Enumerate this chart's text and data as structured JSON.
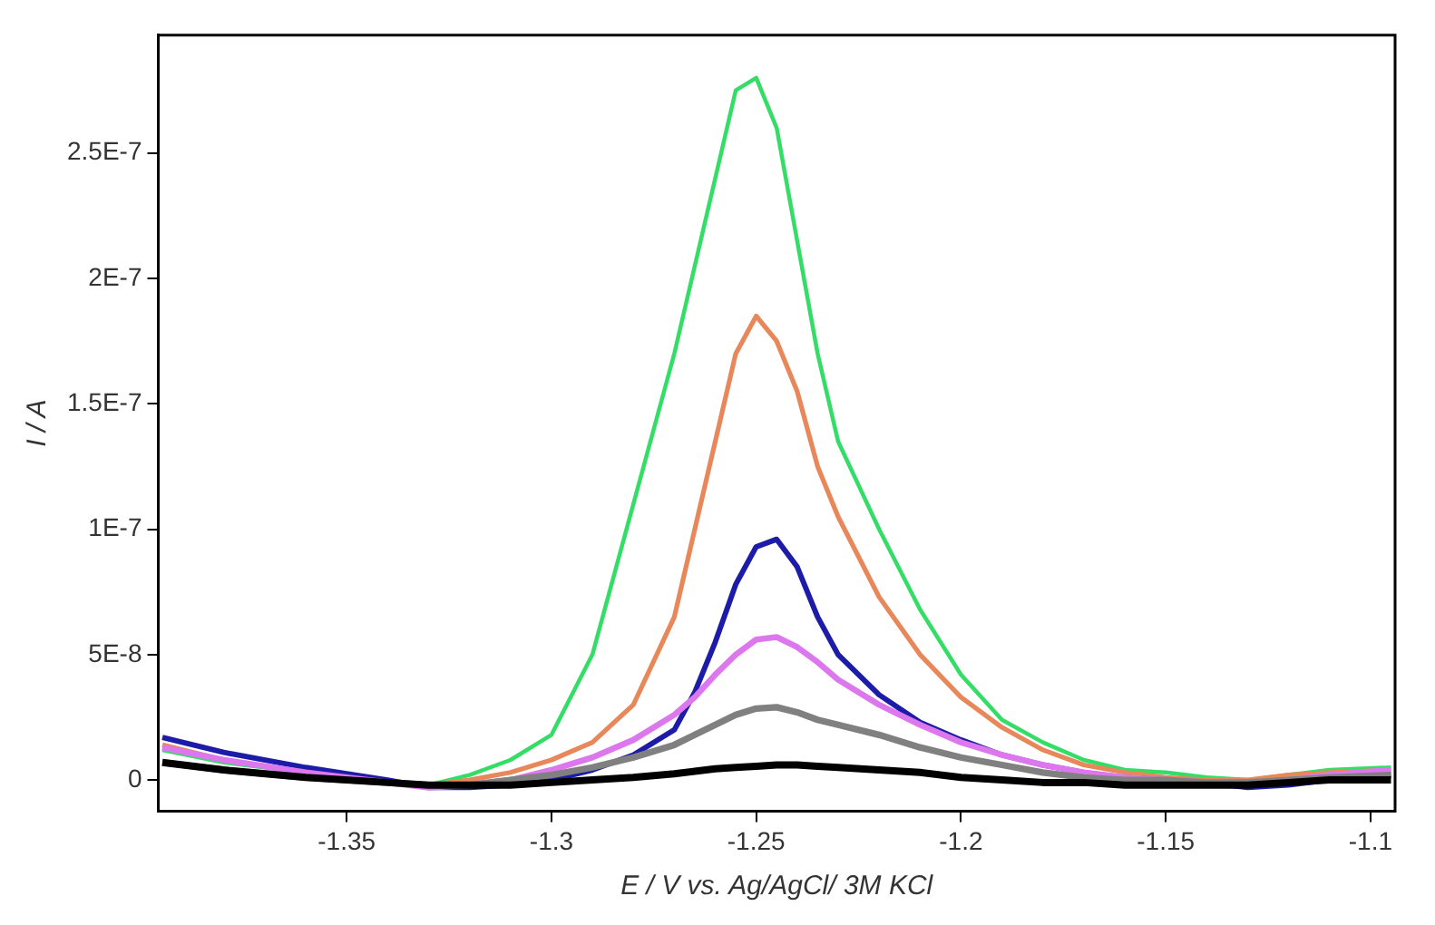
{
  "chart_data": {
    "type": "line",
    "xlabel": "E / V vs. Ag/AgCl/ 3M KCl",
    "ylabel": "I / A",
    "x": [
      -1.395,
      -1.38,
      -1.36,
      -1.34,
      -1.33,
      -1.32,
      -1.31,
      -1.3,
      -1.29,
      -1.28,
      -1.27,
      -1.265,
      -1.26,
      -1.255,
      -1.25,
      -1.245,
      -1.24,
      -1.235,
      -1.23,
      -1.22,
      -1.21,
      -1.2,
      -1.19,
      -1.18,
      -1.17,
      -1.16,
      -1.15,
      -1.14,
      -1.13,
      -1.12,
      -1.11,
      -1.095
    ],
    "series": [
      {
        "color": "#000000",
        "values": [
          7e-09,
          4e-09,
          1e-09,
          -1e-09,
          -2e-09,
          -2e-09,
          -2e-09,
          -1e-09,
          0,
          1e-09,
          2.5e-09,
          3.5e-09,
          4.5e-09,
          5e-09,
          5.5e-09,
          6e-09,
          6e-09,
          5.5e-09,
          5e-09,
          4e-09,
          3e-09,
          1e-09,
          0,
          -1e-09,
          -1e-09,
          -2e-09,
          -2e-09,
          -2e-09,
          -2e-09,
          -1e-09,
          0,
          0
        ]
      },
      {
        "color": "#808080",
        "values": [
          7e-09,
          4e-09,
          1e-09,
          -1e-09,
          -2e-09,
          -2e-09,
          0,
          2e-09,
          5e-09,
          9e-09,
          1.4e-08,
          1.8e-08,
          2.2e-08,
          2.6e-08,
          2.85e-08,
          2.9e-08,
          2.7e-08,
          2.4e-08,
          2.2e-08,
          1.8e-08,
          1.3e-08,
          9e-09,
          6e-09,
          3e-09,
          1e-09,
          0,
          0,
          -1e-09,
          -1e-09,
          0,
          1e-09,
          2e-09
        ]
      },
      {
        "color": "#dd77ee",
        "values": [
          1.3e-08,
          8e-09,
          3e-09,
          -1e-09,
          -3e-09,
          -2e-09,
          0,
          4e-09,
          9e-09,
          1.6e-08,
          2.6e-08,
          3.3e-08,
          4.2e-08,
          5e-08,
          5.6e-08,
          5.7e-08,
          5.3e-08,
          4.7e-08,
          4e-08,
          3e-08,
          2.2e-08,
          1.5e-08,
          1e-08,
          6e-09,
          3e-09,
          1e-09,
          0,
          -1e-09,
          -2e-09,
          0,
          2e-09,
          4e-09
        ]
      },
      {
        "color": "#1c1ca8",
        "values": [
          1.7e-08,
          1.1e-08,
          5e-09,
          0,
          -3e-09,
          -3e-09,
          -2e-09,
          0,
          4e-09,
          1e-08,
          2e-08,
          3.5e-08,
          5.5e-08,
          7.8e-08,
          9.3e-08,
          9.6e-08,
          8.5e-08,
          6.5e-08,
          5e-08,
          3.4e-08,
          2.3e-08,
          1.6e-08,
          1e-08,
          6e-09,
          3e-09,
          1e-09,
          0,
          -1e-09,
          -3e-09,
          -2e-09,
          0,
          2e-09
        ]
      },
      {
        "color": "#e8875a",
        "values": [
          1.4e-08,
          8e-09,
          3e-09,
          -1e-09,
          -2e-09,
          0,
          3e-09,
          8e-09,
          1.5e-08,
          3e-08,
          6.5e-08,
          1e-07,
          1.35e-07,
          1.7e-07,
          1.85e-07,
          1.75e-07,
          1.55e-07,
          1.25e-07,
          1.05e-07,
          7.3e-08,
          5e-08,
          3.3e-08,
          2.1e-08,
          1.2e-08,
          6e-09,
          3e-09,
          1e-09,
          0,
          0,
          2e-09,
          3e-09,
          4e-09
        ]
      },
      {
        "color": "#33dd66",
        "values": [
          1.2e-08,
          7e-09,
          3e-09,
          -1e-09,
          -2e-09,
          2e-09,
          8e-09,
          1.8e-08,
          5e-08,
          1.1e-07,
          1.7e-07,
          2.05e-07,
          2.4e-07,
          2.75e-07,
          2.8e-07,
          2.6e-07,
          2.15e-07,
          1.7e-07,
          1.35e-07,
          1e-07,
          6.8e-08,
          4.2e-08,
          2.4e-08,
          1.5e-08,
          8e-09,
          4e-09,
          3e-09,
          1e-09,
          0,
          2e-09,
          4e-09,
          5e-09
        ]
      }
    ],
    "xlim": [
      -1.396,
      -1.094
    ],
    "xticks": [
      -1.35,
      -1.3,
      -1.25,
      -1.2,
      -1.15,
      -1.1
    ],
    "ylim": [
      -1.24e-08,
      2.97e-07
    ],
    "yticks": [
      0,
      {
        "value": 5e-08,
        "label": "5E-8"
      },
      {
        "value": 1e-07,
        "label": "1E-7"
      },
      {
        "value": 1.5e-07,
        "label": "1.5E-7"
      },
      {
        "value": 2e-07,
        "label": "2E-7"
      },
      {
        "value": 2.5e-07,
        "label": "2.5E-7"
      }
    ],
    "grid": false,
    "legend": false,
    "marker": "none",
    "line_style": "solid"
  }
}
